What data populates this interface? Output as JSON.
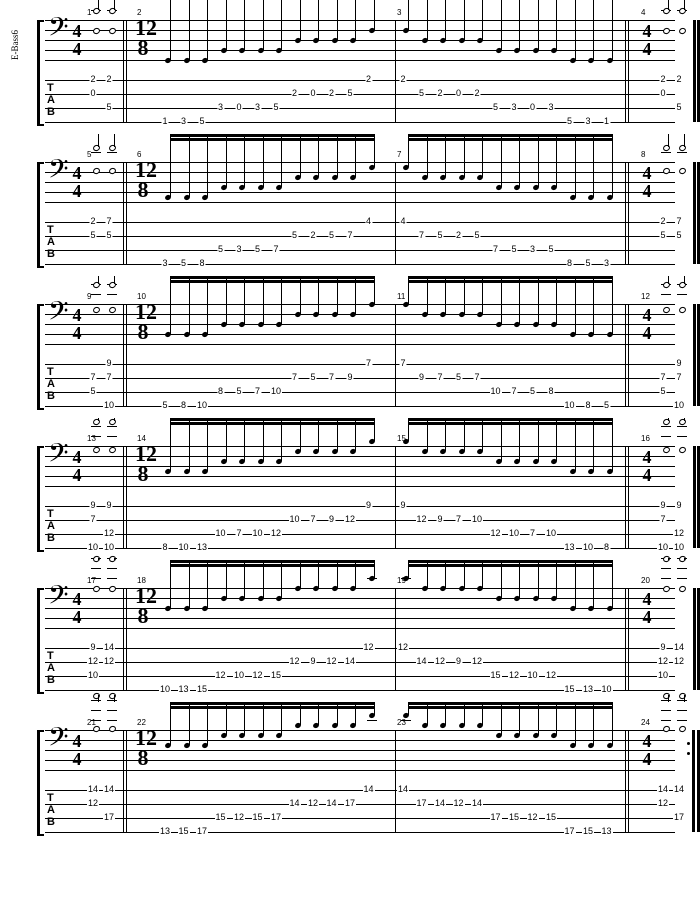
{
  "instrument": "E-Bass6",
  "layout": {
    "staff_line_count": 5,
    "staff_line_spacing": 10,
    "tab_line_count": 4,
    "tab_line_spacing": 14,
    "colors": {
      "line": "#000000",
      "bg": "#ffffff",
      "text": "#000000"
    }
  },
  "time_signatures": {
    "open": "4/4",
    "mid": "12/8",
    "close": "4/4"
  },
  "systems": [
    {
      "bars": [
        1,
        2,
        3,
        4
      ],
      "intro_tab": [
        [
          "2",
          "2"
        ],
        [
          "0",
          ""
        ],
        [
          "",
          "5"
        ]
      ],
      "intro_string_rows": [
        0,
        1,
        2
      ],
      "asc_tab": [
        {
          "s": 3,
          "f": "1"
        },
        {
          "s": 3,
          "f": "3"
        },
        {
          "s": 3,
          "f": "5"
        },
        {
          "s": 2,
          "f": "3"
        },
        {
          "s": 2,
          "f": "0"
        },
        {
          "s": 2,
          "f": "3"
        },
        {
          "s": 2,
          "f": "5"
        },
        {
          "s": 1,
          "f": "2"
        },
        {
          "s": 1,
          "f": "0"
        },
        {
          "s": 1,
          "f": "2"
        },
        {
          "s": 1,
          "f": "5"
        },
        {
          "s": 0,
          "f": "2"
        }
      ],
      "desc_tab": [
        {
          "s": 0,
          "f": "2"
        },
        {
          "s": 1,
          "f": "5"
        },
        {
          "s": 1,
          "f": "2"
        },
        {
          "s": 1,
          "f": "0"
        },
        {
          "s": 1,
          "f": "2"
        },
        {
          "s": 2,
          "f": "5"
        },
        {
          "s": 2,
          "f": "3"
        },
        {
          "s": 2,
          "f": "0"
        },
        {
          "s": 2,
          "f": "3"
        },
        {
          "s": 3,
          "f": "5"
        },
        {
          "s": 3,
          "f": "3"
        },
        {
          "s": 3,
          "f": "1"
        }
      ],
      "outro_tab": [
        [
          "2",
          "2"
        ],
        [
          "0",
          ""
        ],
        [
          "",
          "5"
        ]
      ]
    },
    {
      "bars": [
        5,
        6,
        7,
        8
      ],
      "intro_tab": [
        [
          "2",
          "7"
        ],
        [
          "5",
          "5"
        ]
      ],
      "intro_string_rows": [
        0,
        1
      ],
      "asc_tab": [
        {
          "s": 3,
          "f": "3"
        },
        {
          "s": 3,
          "f": "5"
        },
        {
          "s": 3,
          "f": "8"
        },
        {
          "s": 2,
          "f": "5"
        },
        {
          "s": 2,
          "f": "3"
        },
        {
          "s": 2,
          "f": "5"
        },
        {
          "s": 2,
          "f": "7"
        },
        {
          "s": 1,
          "f": "5"
        },
        {
          "s": 1,
          "f": "2"
        },
        {
          "s": 1,
          "f": "5"
        },
        {
          "s": 1,
          "f": "7"
        },
        {
          "s": 0,
          "f": "4"
        }
      ],
      "desc_tab": [
        {
          "s": 0,
          "f": "4"
        },
        {
          "s": 1,
          "f": "7"
        },
        {
          "s": 1,
          "f": "5"
        },
        {
          "s": 1,
          "f": "2"
        },
        {
          "s": 1,
          "f": "5"
        },
        {
          "s": 2,
          "f": "7"
        },
        {
          "s": 2,
          "f": "5"
        },
        {
          "s": 2,
          "f": "3"
        },
        {
          "s": 2,
          "f": "5"
        },
        {
          "s": 3,
          "f": "8"
        },
        {
          "s": 3,
          "f": "5"
        },
        {
          "s": 3,
          "f": "3"
        }
      ],
      "outro_tab": [
        [
          "2",
          "7"
        ],
        [
          "5",
          "5"
        ]
      ]
    },
    {
      "bars": [
        9,
        10,
        11,
        12
      ],
      "intro_tab": [
        [
          "",
          "9"
        ],
        [
          "7",
          "7"
        ],
        [
          "5",
          ""
        ],
        [
          "",
          "10"
        ]
      ],
      "intro_string_rows": [
        0,
        1,
        2,
        3
      ],
      "asc_tab": [
        {
          "s": 3,
          "f": "5"
        },
        {
          "s": 3,
          "f": "8"
        },
        {
          "s": 3,
          "f": "10"
        },
        {
          "s": 2,
          "f": "8"
        },
        {
          "s": 2,
          "f": "5"
        },
        {
          "s": 2,
          "f": "7"
        },
        {
          "s": 2,
          "f": "10"
        },
        {
          "s": 1,
          "f": "7"
        },
        {
          "s": 1,
          "f": "5"
        },
        {
          "s": 1,
          "f": "7"
        },
        {
          "s": 1,
          "f": "9"
        },
        {
          "s": 0,
          "f": "7"
        }
      ],
      "desc_tab": [
        {
          "s": 0,
          "f": "7"
        },
        {
          "s": 1,
          "f": "9"
        },
        {
          "s": 1,
          "f": "7"
        },
        {
          "s": 1,
          "f": "5"
        },
        {
          "s": 1,
          "f": "7"
        },
        {
          "s": 2,
          "f": "10"
        },
        {
          "s": 2,
          "f": "7"
        },
        {
          "s": 2,
          "f": "5"
        },
        {
          "s": 2,
          "f": "8"
        },
        {
          "s": 3,
          "f": "10"
        },
        {
          "s": 3,
          "f": "8"
        },
        {
          "s": 3,
          "f": "5"
        }
      ],
      "outro_tab": [
        [
          "",
          "9"
        ],
        [
          "7",
          "7"
        ],
        [
          "5",
          ""
        ],
        [
          "",
          "10"
        ]
      ]
    },
    {
      "bars": [
        13,
        14,
        15,
        16
      ],
      "intro_tab": [
        [
          "9",
          "9"
        ],
        [
          "7",
          ""
        ],
        [
          "",
          "12"
        ],
        [
          "10",
          "10"
        ]
      ],
      "intro_string_rows": [
        0,
        1,
        2,
        3
      ],
      "asc_tab": [
        {
          "s": 3,
          "f": "8"
        },
        {
          "s": 3,
          "f": "10"
        },
        {
          "s": 3,
          "f": "13"
        },
        {
          "s": 2,
          "f": "10"
        },
        {
          "s": 2,
          "f": "7"
        },
        {
          "s": 2,
          "f": "10"
        },
        {
          "s": 2,
          "f": "12"
        },
        {
          "s": 1,
          "f": "10"
        },
        {
          "s": 1,
          "f": "7"
        },
        {
          "s": 1,
          "f": "9"
        },
        {
          "s": 1,
          "f": "12"
        },
        {
          "s": 0,
          "f": "9"
        }
      ],
      "desc_tab": [
        {
          "s": 0,
          "f": "9"
        },
        {
          "s": 1,
          "f": "12"
        },
        {
          "s": 1,
          "f": "9"
        },
        {
          "s": 1,
          "f": "7"
        },
        {
          "s": 1,
          "f": "10"
        },
        {
          "s": 2,
          "f": "12"
        },
        {
          "s": 2,
          "f": "10"
        },
        {
          "s": 2,
          "f": "7"
        },
        {
          "s": 2,
          "f": "10"
        },
        {
          "s": 3,
          "f": "13"
        },
        {
          "s": 3,
          "f": "10"
        },
        {
          "s": 3,
          "f": "8"
        }
      ],
      "outro_tab": [
        [
          "9",
          "9"
        ],
        [
          "7",
          ""
        ],
        [
          "",
          "12"
        ],
        [
          "10",
          "10"
        ]
      ]
    },
    {
      "bars": [
        17,
        18,
        19,
        20
      ],
      "intro_tab": [
        [
          "9",
          "14"
        ],
        [
          "12",
          "12"
        ],
        [
          "10",
          ""
        ]
      ],
      "intro_string_rows": [
        0,
        1,
        2
      ],
      "asc_tab": [
        {
          "s": 3,
          "f": "10"
        },
        {
          "s": 3,
          "f": "13"
        },
        {
          "s": 3,
          "f": "15"
        },
        {
          "s": 2,
          "f": "12"
        },
        {
          "s": 2,
          "f": "10"
        },
        {
          "s": 2,
          "f": "12"
        },
        {
          "s": 2,
          "f": "15"
        },
        {
          "s": 1,
          "f": "12"
        },
        {
          "s": 1,
          "f": "9"
        },
        {
          "s": 1,
          "f": "12"
        },
        {
          "s": 1,
          "f": "14"
        },
        {
          "s": 0,
          "f": "12"
        }
      ],
      "desc_tab": [
        {
          "s": 0,
          "f": "12"
        },
        {
          "s": 1,
          "f": "14"
        },
        {
          "s": 1,
          "f": "12"
        },
        {
          "s": 1,
          "f": "9"
        },
        {
          "s": 1,
          "f": "12"
        },
        {
          "s": 2,
          "f": "15"
        },
        {
          "s": 2,
          "f": "12"
        },
        {
          "s": 2,
          "f": "10"
        },
        {
          "s": 2,
          "f": "12"
        },
        {
          "s": 3,
          "f": "15"
        },
        {
          "s": 3,
          "f": "13"
        },
        {
          "s": 3,
          "f": "10"
        }
      ],
      "outro_tab": [
        [
          "9",
          "14"
        ],
        [
          "12",
          "12"
        ],
        [
          "10",
          ""
        ]
      ]
    },
    {
      "bars": [
        21,
        22,
        23,
        24
      ],
      "intro_tab": [
        [
          "14",
          "14"
        ],
        [
          "12",
          ""
        ],
        [
          "",
          "17"
        ]
      ],
      "intro_string_rows": [
        0,
        1,
        2
      ],
      "asc_tab": [
        {
          "s": 3,
          "f": "13"
        },
        {
          "s": 3,
          "f": "15"
        },
        {
          "s": 3,
          "f": "17"
        },
        {
          "s": 2,
          "f": "15"
        },
        {
          "s": 2,
          "f": "12"
        },
        {
          "s": 2,
          "f": "15"
        },
        {
          "s": 2,
          "f": "17"
        },
        {
          "s": 1,
          "f": "14"
        },
        {
          "s": 1,
          "f": "12"
        },
        {
          "s": 1,
          "f": "14"
        },
        {
          "s": 1,
          "f": "17"
        },
        {
          "s": 0,
          "f": "14"
        }
      ],
      "desc_tab": [
        {
          "s": 0,
          "f": "14"
        },
        {
          "s": 1,
          "f": "17"
        },
        {
          "s": 1,
          "f": "14"
        },
        {
          "s": 1,
          "f": "12"
        },
        {
          "s": 1,
          "f": "14"
        },
        {
          "s": 2,
          "f": "17"
        },
        {
          "s": 2,
          "f": "15"
        },
        {
          "s": 2,
          "f": "12"
        },
        {
          "s": 2,
          "f": "15"
        },
        {
          "s": 3,
          "f": "17"
        },
        {
          "s": 3,
          "f": "15"
        },
        {
          "s": 3,
          "f": "13"
        }
      ],
      "outro_tab": [
        [
          "14",
          "14"
        ],
        [
          "12",
          ""
        ],
        [
          "",
          "17"
        ]
      ],
      "final": true
    }
  ]
}
